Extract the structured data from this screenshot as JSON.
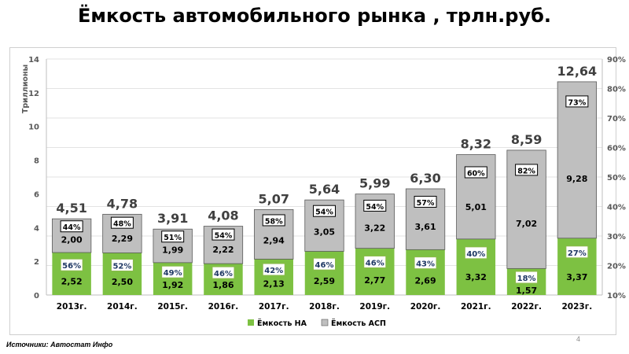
{
  "slide": {
    "title": "Ёмкость автомобильного рынка ,  трлн.руб.",
    "source": "Источники: Автостат Инфо",
    "page_number": "4"
  },
  "colors": {
    "na": "#7dc142",
    "asp": "#bfbfbf",
    "badge_na_border": "#8ab84a",
    "badge_na_text": "#1f3864",
    "badge_asp_border": "#000000"
  },
  "chart_data": {
    "type": "bar",
    "stacked": true,
    "categories": [
      "2013г.",
      "2014г.",
      "2015г.",
      "2016г.",
      "2017г.",
      "2018г.",
      "2019г.",
      "2020г.",
      "2021г.",
      "2022г.",
      "2023г."
    ],
    "series": [
      {
        "name": "Ёмкость НА",
        "values": [
          2.52,
          2.5,
          1.92,
          1.86,
          2.13,
          2.59,
          2.77,
          2.69,
          3.32,
          1.57,
          3.37
        ],
        "labels": [
          "2,52",
          "2,50",
          "1,92",
          "1,86",
          "2,13",
          "2,59",
          "2,77",
          "2,69",
          "3,32",
          "1,57",
          "3,37"
        ],
        "color": "#7dc142"
      },
      {
        "name": "Ёмкость АСП",
        "values": [
          2.0,
          2.29,
          1.99,
          2.22,
          2.94,
          3.05,
          3.22,
          3.61,
          5.01,
          7.02,
          9.28
        ],
        "labels": [
          "2,00",
          "2,29",
          "1,99",
          "2,22",
          "2,94",
          "3,05",
          "3,22",
          "3,61",
          "5,01",
          "7,02",
          "9,28"
        ],
        "color": "#bfbfbf"
      }
    ],
    "totals": [
      "4,51",
      "4,78",
      "3,91",
      "4,08",
      "5,07",
      "5,64",
      "5,99",
      "6,30",
      "8,32",
      "8,59",
      "12,64"
    ],
    "share_na": [
      "56%",
      "52%",
      "49%",
      "46%",
      "42%",
      "46%",
      "46%",
      "43%",
      "40%",
      "18%",
      "27%"
    ],
    "share_asp": [
      "44%",
      "48%",
      "51%",
      "54%",
      "58%",
      "54%",
      "54%",
      "57%",
      "60%",
      "82%",
      "73%"
    ],
    "ylabel": "Триллионы",
    "ylim": [
      0,
      14
    ],
    "yticks": [
      "0",
      "2",
      "4",
      "6",
      "8",
      "10",
      "12",
      "14"
    ],
    "y2lim": [
      10,
      90
    ],
    "y2ticks": [
      "10%",
      "20%",
      "30%",
      "40%",
      "50%",
      "60%",
      "70%",
      "80%",
      "90%"
    ],
    "grid": true,
    "legend_position": "bottom"
  }
}
